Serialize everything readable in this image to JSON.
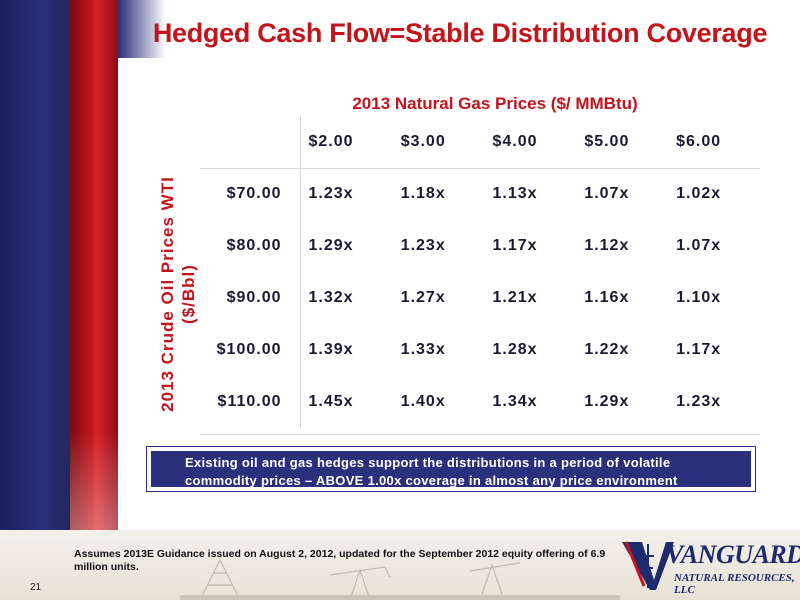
{
  "title": "Hedged Cash Flow=Stable Distribution Coverage",
  "table": {
    "column_header_title": "2013 Natural Gas Prices ($/ MMBtu)",
    "row_header_title": "2013 Crude Oil Prices WTI\n($/Bbl)",
    "columns": [
      "$2.00",
      "$3.00",
      "$4.00",
      "$5.00",
      "$6.00"
    ],
    "rows": [
      {
        "label": "$70.00",
        "values": [
          "1.23x",
          "1.18x",
          "1.13x",
          "1.07x",
          "1.02x"
        ]
      },
      {
        "label": "$80.00",
        "values": [
          "1.29x",
          "1.23x",
          "1.17x",
          "1.12x",
          "1.07x"
        ]
      },
      {
        "label": "$90.00",
        "values": [
          "1.32x",
          "1.27x",
          "1.21x",
          "1.16x",
          "1.10x"
        ]
      },
      {
        "label": "$100.00",
        "values": [
          "1.39x",
          "1.33x",
          "1.28x",
          "1.22x",
          "1.17x"
        ]
      },
      {
        "label": "$110.00",
        "values": [
          "1.45x",
          "1.40x",
          "1.34x",
          "1.29x",
          "1.23x"
        ]
      }
    ]
  },
  "callout": "Existing oil and gas hedges support the distributions in a period of volatile commodity prices – ABOVE 1.00x coverage in almost any price environment",
  "footnote": "Assumes 2013E Guidance issued on August 2, 2012, updated for the September 2012 equity offering of 6.9 million units.",
  "page_number": "21",
  "logo": {
    "main": "VANGUARD",
    "sub": "NATURAL RESOURCES, LLC"
  },
  "colors": {
    "accent_red": "#c3141c",
    "navy": "#2b2f7c"
  }
}
